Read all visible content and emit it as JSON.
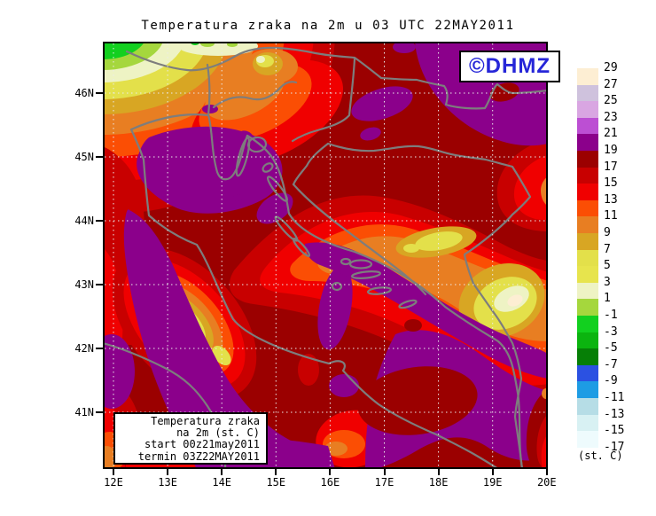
{
  "title": "Temperatura zraka na 2m u 03 UTC 22MAY2011",
  "logo": {
    "text": "©DHMZ",
    "color": "#2626d8"
  },
  "axes": {
    "x_labels": [
      "12E",
      "13E",
      "14E",
      "15E",
      "16E",
      "17E",
      "18E",
      "19E",
      "20E"
    ],
    "y_labels": [
      "46N",
      "45N",
      "44N",
      "43N",
      "42N",
      "41N"
    ]
  },
  "colorbar": {
    "unit": "(st. C)",
    "boundary_labels": [
      "29",
      "27",
      "25",
      "23",
      "21",
      "19",
      "17",
      "15",
      "13",
      "11",
      "9",
      "7",
      "5",
      "3",
      "1",
      "-1",
      "-3",
      "-5",
      "-7",
      "-9",
      "-11",
      "-13",
      "-15",
      "-17"
    ],
    "band_colors": [
      "#fdeed3",
      "#cfc2dd",
      "#d9a6e2",
      "#bc4fd3",
      "#8b008b",
      "#9b0000",
      "#c80000",
      "#f00000",
      "#fb4e04",
      "#e87e22",
      "#d8a623",
      "#e3e04a",
      "#e7e44d",
      "#eef3c4",
      "#a5d73d",
      "#12d01f",
      "#0bb40f",
      "#067f06",
      "#2b51e2",
      "#1d9ce4",
      "#b6dde6",
      "#d8f1f3",
      "#eefbfd"
    ]
  },
  "legend_box": {
    "lines": [
      "Temperatura zraka",
      "na 2m (st. C)",
      "start 00z21may2011",
      "termin 03Z22MAY2011"
    ]
  },
  "palette": {
    "darkred": "#9b0000",
    "red": "#c80000",
    "brightred": "#f00000",
    "orangered": "#fb4e04",
    "orange": "#e87e22",
    "gold": "#d8a623",
    "yellow": "#e3e04a",
    "paleyellow": "#eef3c4",
    "yellowgreen": "#a5d73d",
    "green": "#12d01f",
    "purple": "#8b008b",
    "cream": "#fdeed3",
    "coastline": "#7d7d7d",
    "gridline": "#ebebeb",
    "frame": "#000000"
  }
}
